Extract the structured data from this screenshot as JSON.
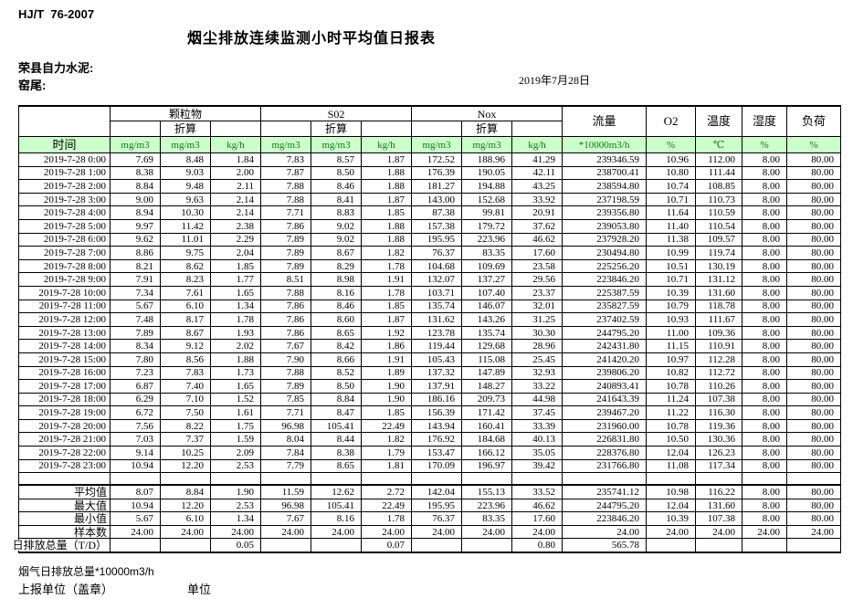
{
  "meta": {
    "standard": "HJ/T  76-2007",
    "title": "烟尘排放连续监测小时平均值日报表",
    "company": "荣县自力水泥:",
    "location": "窑尾:",
    "date": "2019年7月28日"
  },
  "colors": {
    "header_bg": "#ccffcc",
    "header_unit_text": "#117711"
  },
  "table": {
    "group_headers": [
      "颗粒物",
      "S02",
      "Nox"
    ],
    "zhesuan_label": "折算",
    "single_headers": [
      "流量",
      "O2",
      "温度",
      "湿度",
      "负荷"
    ],
    "time_label": "时间",
    "units": [
      "mg/m3",
      "mg/m3",
      "kg/h",
      "mg/m3",
      "mg/m3",
      "kg/h",
      "mg/m3",
      "mg/m3",
      "kg/h",
      "*10000m3/h",
      "%",
      "℃",
      "%",
      "%"
    ],
    "rows": [
      {
        "time": "2019-7-28 0:00",
        "values": [
          "7.69",
          "8.48",
          "1.84",
          "7.83",
          "8.57",
          "1.87",
          "172.52",
          "188.96",
          "41.29",
          "239346.59",
          "10.96",
          "112.00",
          "8.00",
          "80.00"
        ]
      },
      {
        "time": "2019-7-28 1:00",
        "values": [
          "8.38",
          "9.03",
          "2.00",
          "7.87",
          "8.50",
          "1.88",
          "176.39",
          "190.05",
          "42.11",
          "238700.41",
          "10.80",
          "111.44",
          "8.00",
          "80.00"
        ]
      },
      {
        "time": "2019-7-28 2:00",
        "values": [
          "8.84",
          "9.48",
          "2.11",
          "7.88",
          "8.46",
          "1.88",
          "181.27",
          "194.88",
          "43.25",
          "238594.80",
          "10.74",
          "108.85",
          "8.00",
          "80.00"
        ]
      },
      {
        "time": "2019-7-28 3:00",
        "values": [
          "9.00",
          "9.63",
          "2.14",
          "7.88",
          "8.41",
          "1.87",
          "143.00",
          "152.68",
          "33.92",
          "237198.59",
          "10.71",
          "110.73",
          "8.00",
          "80.00"
        ]
      },
      {
        "time": "2019-7-28 4:00",
        "values": [
          "8.94",
          "10.30",
          "2.14",
          "7.71",
          "8.83",
          "1.85",
          "87.38",
          "99.81",
          "20.91",
          "239356.80",
          "11.64",
          "110.59",
          "8.00",
          "80.00"
        ]
      },
      {
        "time": "2019-7-28 5:00",
        "values": [
          "9.97",
          "11.42",
          "2.38",
          "7.86",
          "9.02",
          "1.88",
          "157.38",
          "179.72",
          "37.62",
          "239053.80",
          "11.40",
          "110.54",
          "8.00",
          "80.00"
        ]
      },
      {
        "time": "2019-7-28 6:00",
        "values": [
          "9.62",
          "11.01",
          "2.29",
          "7.89",
          "9.02",
          "1.88",
          "195.95",
          "223.96",
          "46.62",
          "237928.20",
          "11.38",
          "109.57",
          "8.00",
          "80.00"
        ]
      },
      {
        "time": "2019-7-28 7:00",
        "values": [
          "8.86",
          "9.75",
          "2.04",
          "7.89",
          "8.67",
          "1.82",
          "76.37",
          "83.35",
          "17.60",
          "230494.80",
          "10.99",
          "119.74",
          "8.00",
          "80.00"
        ]
      },
      {
        "time": "2019-7-28 8:00",
        "values": [
          "8.21",
          "8.62",
          "1.85",
          "7.89",
          "8.29",
          "1.78",
          "104.68",
          "109.69",
          "23.58",
          "225256.20",
          "10.51",
          "130.19",
          "8.00",
          "80.00"
        ]
      },
      {
        "time": "2019-7-28 9:00",
        "values": [
          "7.91",
          "8.23",
          "1.77",
          "8.51",
          "8.98",
          "1.91",
          "132.07",
          "137.27",
          "29.56",
          "223846.20",
          "10.71",
          "131.12",
          "8.00",
          "80.00"
        ]
      },
      {
        "time": "2019-7-28 10:00",
        "values": [
          "7.34",
          "7.61",
          "1.65",
          "7.88",
          "8.16",
          "1.78",
          "103.71",
          "107.40",
          "23.37",
          "225387.59",
          "10.39",
          "131.60",
          "8.00",
          "80.00"
        ]
      },
      {
        "time": "2019-7-28 11:00",
        "values": [
          "5.67",
          "6.10",
          "1.34",
          "7.86",
          "8.46",
          "1.85",
          "135.74",
          "146.07",
          "32.01",
          "235827.59",
          "10.79",
          "118.78",
          "8.00",
          "80.00"
        ]
      },
      {
        "time": "2019-7-28 12:00",
        "values": [
          "7.48",
          "8.17",
          "1.78",
          "7.86",
          "8.60",
          "1.87",
          "131.62",
          "143.26",
          "31.25",
          "237402.59",
          "10.93",
          "111.67",
          "8.00",
          "80.00"
        ]
      },
      {
        "time": "2019-7-28 13:00",
        "values": [
          "7.89",
          "8.67",
          "1.93",
          "7.86",
          "8.65",
          "1.92",
          "123.78",
          "135.74",
          "30.30",
          "244795.20",
          "11.00",
          "109.36",
          "8.00",
          "80.00"
        ]
      },
      {
        "time": "2019-7-28 14:00",
        "values": [
          "8.34",
          "9.12",
          "2.02",
          "7.67",
          "8.42",
          "1.86",
          "119.44",
          "129.68",
          "28.96",
          "242431.80",
          "11.15",
          "110.91",
          "8.00",
          "80.00"
        ]
      },
      {
        "time": "2019-7-28 15:00",
        "values": [
          "7.80",
          "8.56",
          "1.88",
          "7.90",
          "8.66",
          "1.91",
          "105.43",
          "115.08",
          "25.45",
          "241420.20",
          "10.97",
          "112.28",
          "8.00",
          "80.00"
        ]
      },
      {
        "time": "2019-7-28 16:00",
        "values": [
          "7.23",
          "7.83",
          "1.73",
          "7.88",
          "8.52",
          "1.89",
          "137.32",
          "147.89",
          "32.93",
          "239806.20",
          "10.82",
          "112.72",
          "8.00",
          "80.00"
        ]
      },
      {
        "time": "2019-7-28 17:00",
        "values": [
          "6.87",
          "7.40",
          "1.65",
          "7.89",
          "8.50",
          "1.90",
          "137.91",
          "148.27",
          "33.22",
          "240893.41",
          "10.78",
          "110.26",
          "8.00",
          "80.00"
        ]
      },
      {
        "time": "2019-7-28 18:00",
        "values": [
          "6.29",
          "7.10",
          "1.52",
          "7.85",
          "8.84",
          "1.90",
          "186.16",
          "209.73",
          "44.98",
          "241643.39",
          "11.24",
          "107.38",
          "8.00",
          "80.00"
        ]
      },
      {
        "time": "2019-7-28 19:00",
        "values": [
          "6.72",
          "7.50",
          "1.61",
          "7.71",
          "8.47",
          "1.85",
          "156.39",
          "171.42",
          "37.45",
          "239467.20",
          "11.22",
          "116.30",
          "8.00",
          "80.00"
        ]
      },
      {
        "time": "2019-7-28 20:00",
        "values": [
          "7.56",
          "8.22",
          "1.75",
          "96.98",
          "105.41",
          "22.49",
          "143.94",
          "160.41",
          "33.39",
          "231960.00",
          "10.78",
          "119.36",
          "8.00",
          "80.00"
        ]
      },
      {
        "time": "2019-7-28 21:00",
        "values": [
          "7.03",
          "7.37",
          "1.59",
          "8.04",
          "8.44",
          "1.82",
          "176.92",
          "184.68",
          "40.13",
          "226831.80",
          "10.50",
          "130.36",
          "8.00",
          "80.00"
        ]
      },
      {
        "time": "2019-7-28 22:00",
        "values": [
          "9.14",
          "10.25",
          "2.09",
          "7.84",
          "8.38",
          "1.79",
          "153.47",
          "166.12",
          "35.05",
          "228376.80",
          "12.04",
          "126.23",
          "8.00",
          "80.00"
        ]
      },
      {
        "time": "2019-7-28 23:00",
        "values": [
          "10.94",
          "12.20",
          "2.53",
          "7.79",
          "8.65",
          "1.81",
          "170.09",
          "196.97",
          "39.42",
          "231766.80",
          "11.08",
          "117.34",
          "8.00",
          "80.00"
        ]
      }
    ],
    "summary": [
      {
        "label": "平均值",
        "thick_top": true,
        "values": [
          "8.07",
          "8.84",
          "1.90",
          "11.59",
          "12.62",
          "2.72",
          "142.04",
          "155.13",
          "33.52",
          "235741.12",
          "10.98",
          "116.22",
          "8.00",
          "80.00"
        ]
      },
      {
        "label": "最大值",
        "thick_top": false,
        "values": [
          "10.94",
          "12.20",
          "2.53",
          "96.98",
          "105.41",
          "22.49",
          "195.95",
          "223.96",
          "46.62",
          "244795.20",
          "12.04",
          "131.60",
          "8.00",
          "80.00"
        ]
      },
      {
        "label": "最小值",
        "thick_top": false,
        "values": [
          "5.67",
          "6.10",
          "1.34",
          "7.67",
          "8.16",
          "1.78",
          "76.37",
          "83.35",
          "17.60",
          "223846.20",
          "10.39",
          "107.38",
          "8.00",
          "80.00"
        ]
      },
      {
        "label": "样本数",
        "thick_top": false,
        "values": [
          "24.00",
          "24.00",
          "24.00",
          "24.00",
          "24.00",
          "24.00",
          "24.00",
          "24.00",
          "24.00",
          "24.00",
          "24.00",
          "24.00",
          "24.00",
          "24.00"
        ]
      },
      {
        "label": "日排放总量（T/D）",
        "thick_top": false,
        "overflow": true,
        "values": [
          "",
          "",
          "0.05",
          "",
          "",
          "0.07",
          "",
          "",
          "0.80",
          "565.78",
          "",
          "",
          "",
          ""
        ]
      }
    ]
  },
  "footer": {
    "note": "烟气日排放总量*10000m3/h",
    "report_unit": "上报单位（盖章）",
    "unit": "单位"
  }
}
